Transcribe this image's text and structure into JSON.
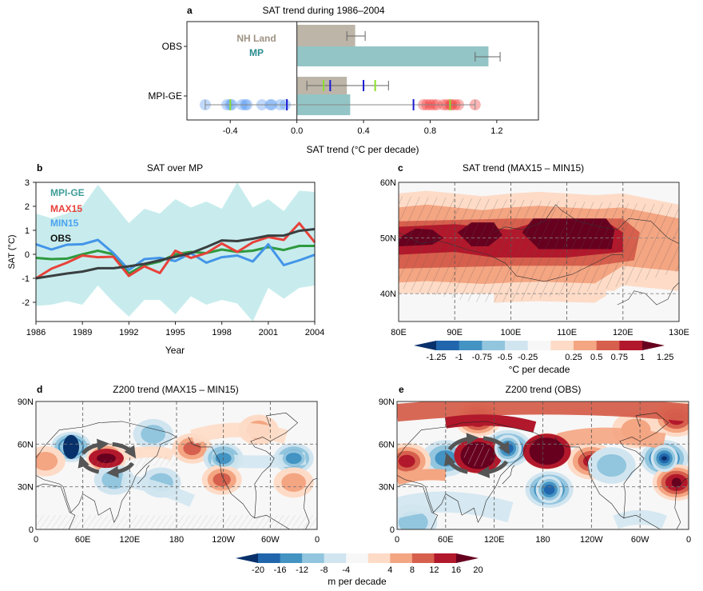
{
  "chart_data": [
    {
      "panel": "a",
      "type": "bar",
      "title": "SAT trend during 1986–2004",
      "xlabel": "SAT trend (°C per decade)",
      "xlim": [
        -0.66,
        1.45
      ],
      "xticks": [
        "-0.4",
        "0.0",
        "0.4",
        "0.8",
        "1.2"
      ],
      "xtick_values": [
        -0.4,
        0.0,
        0.4,
        0.8,
        1.2
      ],
      "categories": [
        "OBS",
        "MPI-GE"
      ],
      "legend": [
        {
          "name": "NH Land",
          "color": "#b9b0a3"
        },
        {
          "name": "MP",
          "color": "#8dc3c4"
        }
      ],
      "legend_position": "top-left",
      "series": [
        {
          "name": "NH Land",
          "values": [
            0.35,
            0.3
          ],
          "color": "#bdb5a8"
        },
        {
          "name": "MP",
          "values": [
            1.15,
            0.32
          ],
          "color": "#93c5c6"
        }
      ],
      "obs_error_bars": {
        "NH Land": [
          0.3,
          0.41
        ],
        "MP": [
          1.07,
          1.22
        ]
      },
      "mpige_nhland_range": {
        "min": 0.06,
        "max": 0.55,
        "blue_marks": [
          0.2,
          0.4
        ],
        "green_marks": [
          0.16,
          0.47
        ]
      },
      "mpige_mp_range": {
        "min": -0.55,
        "max": 1.07,
        "blue_marks": [
          -0.06,
          0.7
        ],
        "green_marks": [
          -0.4,
          0.92
        ]
      },
      "min15_members": [
        -0.55,
        -0.42,
        -0.4,
        -0.39,
        -0.33,
        -0.31,
        -0.3,
        -0.21,
        -0.16,
        -0.15,
        -0.1,
        -0.07
      ],
      "max15_members": [
        0.76,
        0.78,
        0.8,
        0.82,
        0.84,
        0.88,
        0.9,
        0.92,
        0.93,
        0.95,
        0.97,
        1.07
      ]
    },
    {
      "panel": "b",
      "type": "line",
      "title": "SAT over MP",
      "xlabel": "Year",
      "ylabel": "SAT (°C)",
      "xlim": [
        1986,
        2004
      ],
      "ylim": [
        -2.8,
        3
      ],
      "xticks": [
        "1986",
        "1989",
        "1992",
        "1995",
        "1998",
        "2001",
        "2004"
      ],
      "yticks": [
        "-2",
        "-1",
        "0",
        "1",
        "2",
        "3"
      ],
      "x": [
        1986,
        1987,
        1988,
        1989,
        1990,
        1991,
        1992,
        1993,
        1994,
        1995,
        1996,
        1997,
        1998,
        1999,
        2000,
        2001,
        2002,
        2003,
        2004
      ],
      "legend_position": "top-left",
      "envelope": {
        "name": "MPI-GE range",
        "color": "#c8eced",
        "upper": [
          1.7,
          1.5,
          1.7,
          2.0,
          2.9,
          2.1,
          1.3,
          1.9,
          1.7,
          2.3,
          1.95,
          2.2,
          1.9,
          3.0,
          1.95,
          2.3,
          1.8,
          2.65,
          2.6
        ],
        "lower": [
          -2.15,
          -2.1,
          -1.95,
          -2.1,
          -1.3,
          -2.0,
          -2.6,
          -1.9,
          -1.9,
          -2.5,
          -1.75,
          -2.1,
          -1.9,
          -2.05,
          -2.8,
          -1.4,
          -1.85,
          -1.4,
          -1.3
        ]
      },
      "series": [
        {
          "name": "MPI-GE",
          "label_color": "#3e9e98",
          "color": "#2e9a3e",
          "values": [
            -0.15,
            -0.2,
            -0.18,
            0.0,
            0.15,
            0.0,
            -0.8,
            -0.45,
            -0.3,
            0.0,
            0.1,
            0.05,
            0.2,
            0.1,
            0.15,
            0.3,
            0.18,
            0.35,
            0.35
          ]
        },
        {
          "name": "MAX15",
          "label_color": "#e8413a",
          "color": "#e8413a",
          "values": [
            -1.0,
            -0.6,
            -0.35,
            -0.05,
            -0.12,
            -0.1,
            -0.9,
            -0.5,
            -0.78,
            0.15,
            -0.15,
            0.05,
            0.45,
            0.1,
            0.5,
            0.72,
            0.6,
            1.3,
            0.5
          ]
        },
        {
          "name": "MIN15",
          "label_color": "#4aa3ef",
          "color": "#4395e8",
          "values": [
            0.42,
            0.2,
            0.4,
            0.42,
            0.6,
            0.05,
            -0.65,
            -0.2,
            -0.15,
            -0.28,
            0.05,
            -0.35,
            -0.12,
            -0.05,
            -0.3,
            0.42,
            -0.45,
            -0.25,
            -0.02
          ]
        },
        {
          "name": "OBS",
          "label_color": "#111111",
          "color": "#3a3f40",
          "values": [
            -1.0,
            -0.9,
            -0.8,
            -0.72,
            -0.58,
            -0.58,
            -0.5,
            -0.4,
            -0.25,
            -0.1,
            0.05,
            0.3,
            0.58,
            0.55,
            0.65,
            0.78,
            0.78,
            0.98,
            1.05
          ]
        }
      ]
    },
    {
      "panel": "c",
      "type": "heatmap",
      "title": "SAT trend (MAX15 – MIN15)",
      "xticks": [
        "80E",
        "90E",
        "100E",
        "110E",
        "120E",
        "130E"
      ],
      "yticks": [
        "40N",
        "50N",
        "60N"
      ],
      "lon_range": [
        80,
        130
      ],
      "lat_range": [
        35,
        60
      ],
      "colorbar_label": "°C per decade",
      "colorbar_ticks": [
        "-1.25",
        "-1",
        "-0.75",
        "-0.5",
        "-0.25",
        "0.25",
        "0.5",
        "0.75",
        "1",
        "1.25"
      ],
      "levels": [
        {
          "lat_n": 58,
          "lat_s": 38.5,
          "value": 0.37
        },
        {
          "lat_n": 55.5,
          "lat_s": 41.5,
          "value": 0.62
        },
        {
          "lat_n": 53,
          "lat_s": 44.5,
          "value": 0.87
        },
        {
          "lat_n": 52,
          "lat_s": 46.5,
          "value": 1.12
        }
      ],
      "maxima": [
        {
          "lon": 84,
          "lat": 50,
          "value": 1.3
        },
        {
          "lon": 95,
          "lat": 50.5,
          "value": 1.3
        },
        {
          "lon": 112,
          "lat": 50.5,
          "value": 1.3
        }
      ],
      "hatching": "significant region"
    },
    {
      "panel": "d",
      "type": "heatmap",
      "title": "Z200 trend (MAX15 – MIN15)",
      "xticks": [
        "0",
        "60E",
        "120E",
        "180",
        "120W",
        "60W",
        "0"
      ],
      "yticks": [
        "0",
        "30N",
        "60N",
        "90N"
      ],
      "colorbar_label": "m per decade",
      "anomalies": [
        {
          "lon": 45,
          "lat": 58,
          "value": -20,
          "sign": "negative"
        },
        {
          "lon": 90,
          "lat": 50,
          "value": 20,
          "sign": "positive"
        },
        {
          "lon": 150,
          "lat": 67,
          "value": -8,
          "sign": "negative"
        },
        {
          "lon": 200,
          "lat": 57,
          "value": 12,
          "sign": "positive"
        },
        {
          "lon": 240,
          "lat": 50,
          "value": -16,
          "sign": "negative"
        },
        {
          "lon": 238,
          "lat": 35,
          "value": 12,
          "sign": "positive"
        },
        {
          "lon": 330,
          "lat": 50,
          "value": -16,
          "sign": "negative"
        },
        {
          "lon": 285,
          "lat": 70,
          "value": 8,
          "sign": "positive"
        },
        {
          "lon": 330,
          "lat": 33,
          "value": 8,
          "sign": "positive"
        },
        {
          "lon": 160,
          "lat": 33,
          "value": -8,
          "sign": "negative"
        },
        {
          "lon": 100,
          "lat": 35,
          "value": -8,
          "sign": "negative"
        },
        {
          "lon": 12,
          "lat": 48,
          "value": 8,
          "sign": "positive"
        }
      ]
    },
    {
      "panel": "e",
      "type": "heatmap",
      "title": "Z200 trend (OBS)",
      "xticks": [
        "0",
        "60E",
        "120E",
        "180",
        "120W",
        "60W",
        "0"
      ],
      "yticks": [
        "0",
        "30N",
        "60N",
        "90N"
      ],
      "colorbar_label": "m per decade",
      "anomalies": [
        {
          "lon": 100,
          "lat": 52,
          "value": 20,
          "sign": "positive"
        },
        {
          "lon": 185,
          "lat": 55,
          "value": 20,
          "sign": "positive"
        },
        {
          "lon": 100,
          "lat": 78,
          "value": 20,
          "sign": "positive"
        },
        {
          "lon": 137,
          "lat": 57,
          "value": -20,
          "sign": "negative"
        },
        {
          "lon": 60,
          "lat": 50,
          "value": -12,
          "sign": "negative"
        },
        {
          "lon": 188,
          "lat": 28,
          "value": -20,
          "sign": "negative"
        },
        {
          "lon": 330,
          "lat": 50,
          "value": -20,
          "sign": "negative"
        },
        {
          "lon": 345,
          "lat": 33,
          "value": 20,
          "sign": "positive"
        },
        {
          "lon": 12,
          "lat": 48,
          "value": 16,
          "sign": "positive"
        },
        {
          "lon": 240,
          "lat": 48,
          "value": 16,
          "sign": "positive"
        },
        {
          "lon": 345,
          "lat": 78,
          "value": 16,
          "sign": "positive"
        },
        {
          "lon": 295,
          "lat": 70,
          "value": 8,
          "sign": "positive"
        },
        {
          "lon": 265,
          "lat": 45,
          "value": -8,
          "sign": "negative"
        },
        {
          "lon": 20,
          "lat": 5,
          "value": -8,
          "sign": "negative"
        }
      ]
    }
  ],
  "colorbars": {
    "sat": {
      "label": "°C per decade",
      "ticks": [
        "-1.25",
        "-1",
        "-0.75",
        "-0.5",
        "-0.25",
        "0.25",
        "0.5",
        "0.75",
        "1",
        "1.25"
      ],
      "colors": [
        "#08306b",
        "#2166ac",
        "#4393c3",
        "#92c5de",
        "#d1e5f0",
        "#f7f7f7",
        "#fddbc7",
        "#f4a582",
        "#d6604d",
        "#b2182b",
        "#67001f"
      ]
    },
    "z200": {
      "label": "m per decade",
      "ticks": [
        "-20",
        "-16",
        "-12",
        "-8",
        "-4",
        "4",
        "8",
        "12",
        "16",
        "20"
      ],
      "colors": [
        "#08306b",
        "#2166ac",
        "#4393c3",
        "#92c5de",
        "#d1e5f0",
        "#f7f7f7",
        "#fddbc7",
        "#f4a582",
        "#d6604d",
        "#b2182b",
        "#67001f"
      ]
    }
  },
  "panel_labels": [
    "a",
    "b",
    "c",
    "d",
    "e"
  ]
}
